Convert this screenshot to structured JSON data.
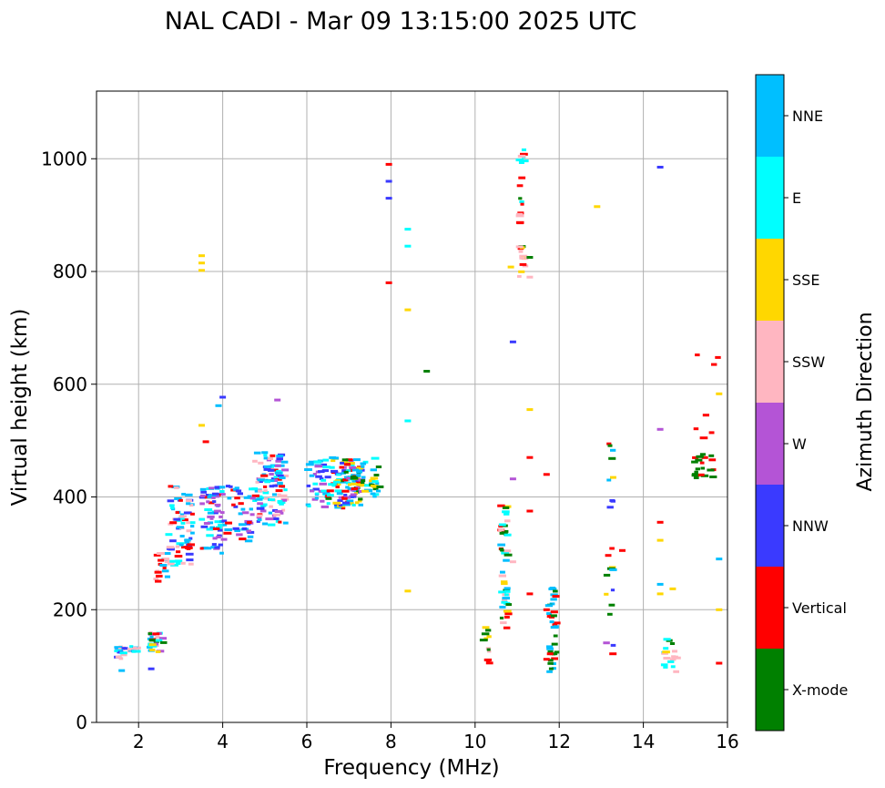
{
  "chart_data": {
    "type": "scatter",
    "title": "NAL CADI - Mar 09 13:15:00 2025 UTC",
    "xlabel": "Frequency (MHz)",
    "ylabel": "Virtual height (km)",
    "xlim": [
      1,
      16
    ],
    "ylim": [
      0,
      1120
    ],
    "xticks": [
      2,
      4,
      6,
      8,
      10,
      12,
      14,
      16
    ],
    "yticks": [
      0,
      200,
      400,
      600,
      800,
      1000
    ],
    "xtick_labels": [
      "2",
      "4",
      "6",
      "8",
      "10",
      "12",
      "14",
      "16"
    ],
    "ytick_labels": [
      "0",
      "200",
      "400",
      "600",
      "800",
      "1000"
    ],
    "grid": true,
    "colorbar": {
      "title": "Azimuth Direction",
      "categories": [
        "X-mode",
        "Vertical",
        "NNW",
        "W",
        "SSW",
        "SSE",
        "E",
        "NNE"
      ],
      "colors": [
        "#008000",
        "#ff0000",
        "#3a3aff",
        "#b454d6",
        "#ffb6c1",
        "#ffd700",
        "#00ffff",
        "#00bfff"
      ]
    },
    "clusters": [
      {
        "x": [
          1.5,
          1.7
        ],
        "y": [
          110,
          135
        ],
        "n": 20,
        "mix": [
          "E",
          "NNE",
          "SSW",
          "NNW"
        ]
      },
      {
        "x": [
          1.8,
          2.0
        ],
        "y": [
          125,
          135
        ],
        "n": 12,
        "mix": [
          "SSW",
          "NNE",
          "E"
        ]
      },
      {
        "x": [
          2.25,
          2.6
        ],
        "y": [
          125,
          160
        ],
        "n": 30,
        "mix": [
          "Vertical",
          "SSW",
          "E",
          "NNE",
          "SSE",
          "W",
          "X-mode"
        ]
      },
      {
        "x": [
          2.4,
          2.7
        ],
        "y": [
          250,
          300
        ],
        "n": 18,
        "mix": [
          "Vertical",
          "SSW",
          "NNE"
        ]
      },
      {
        "x": [
          2.7,
          3.3
        ],
        "y": [
          270,
          420
        ],
        "n": 70,
        "mix": [
          "Vertical",
          "NNE",
          "SSW",
          "NNW",
          "E"
        ]
      },
      {
        "x": [
          3.5,
          4.0
        ],
        "y": [
          300,
          420
        ],
        "n": 60,
        "mix": [
          "NNE",
          "Vertical",
          "E",
          "NNW",
          "W"
        ]
      },
      {
        "x": [
          4.0,
          4.7
        ],
        "y": [
          320,
          420
        ],
        "n": 40,
        "mix": [
          "NNW",
          "NNE",
          "W",
          "Vertical"
        ]
      },
      {
        "x": [
          4.7,
          5.5
        ],
        "y": [
          350,
          480
        ],
        "n": 110,
        "mix": [
          "W",
          "NNW",
          "NNE",
          "Vertical",
          "E",
          "SSW"
        ]
      },
      {
        "x": [
          6.0,
          6.5
        ],
        "y": [
          380,
          470
        ],
        "n": 40,
        "mix": [
          "NNW",
          "W",
          "NNE",
          "E"
        ]
      },
      {
        "x": [
          6.5,
          7.3
        ],
        "y": [
          380,
          470
        ],
        "n": 120,
        "mix": [
          "NNW",
          "NNE",
          "E",
          "W",
          "SSE",
          "X-mode",
          "Vertical"
        ]
      },
      {
        "x": [
          7.3,
          7.8
        ],
        "y": [
          400,
          470
        ],
        "n": 30,
        "mix": [
          "SSE",
          "E",
          "NNE",
          "X-mode"
        ]
      },
      {
        "x": [
          10.2,
          10.35
        ],
        "y": [
          90,
          170
        ],
        "n": 12,
        "mix": [
          "SSE",
          "Vertical",
          "X-mode",
          "SSW"
        ]
      },
      {
        "x": [
          10.6,
          10.8
        ],
        "y": [
          165,
          385
        ],
        "n": 45,
        "mix": [
          "SSE",
          "E",
          "X-mode",
          "Vertical",
          "SSW",
          "NNE"
        ]
      },
      {
        "x": [
          11.05,
          11.2
        ],
        "y": [
          790,
          1020
        ],
        "n": 30,
        "mix": [
          "SSW",
          "Vertical",
          "X-mode",
          "SSE",
          "E"
        ]
      },
      {
        "x": [
          11.75,
          11.95
        ],
        "y": [
          90,
          240
        ],
        "n": 35,
        "mix": [
          "Vertical",
          "X-mode",
          "NNE"
        ]
      },
      {
        "x": [
          13.1,
          13.3
        ],
        "y": [
          90,
          505
        ],
        "n": 22,
        "mix": [
          "X-mode",
          "Vertical",
          "NNW",
          "W",
          "NNE",
          "SSE"
        ]
      },
      {
        "x": [
          14.5,
          14.8
        ],
        "y": [
          88,
          150
        ],
        "n": 18,
        "mix": [
          "Vertical",
          "SSW",
          "SSE",
          "E",
          "X-mode"
        ]
      },
      {
        "x": [
          15.2,
          15.7
        ],
        "y": [
          430,
          485
        ],
        "n": 20,
        "mix": [
          "Vertical",
          "X-mode"
        ]
      },
      {
        "x": [
          15.2,
          15.7
        ],
        "y": [
          500,
          560
        ],
        "n": 4,
        "mix": [
          "Vertical"
        ]
      },
      {
        "x": [
          15.2,
          15.8
        ],
        "y": [
          635,
          675
        ],
        "n": 3,
        "mix": [
          "SSW",
          "Vertical"
        ]
      }
    ],
    "points": [
      [
        1.6,
        92,
        "NNE"
      ],
      [
        2.3,
        95,
        "NNW"
      ],
      [
        3.5,
        828,
        "SSE"
      ],
      [
        3.5,
        815,
        "SSE"
      ],
      [
        3.5,
        802,
        "SSE"
      ],
      [
        3.5,
        527,
        "SSE"
      ],
      [
        3.6,
        498,
        "Vertical"
      ],
      [
        3.9,
        562,
        "NNE"
      ],
      [
        4.0,
        577,
        "NNW"
      ],
      [
        5.3,
        572,
        "W"
      ],
      [
        7.95,
        990,
        "Vertical"
      ],
      [
        7.95,
        960,
        "NNW"
      ],
      [
        7.95,
        930,
        "NNW"
      ],
      [
        7.95,
        780,
        "Vertical"
      ],
      [
        8.4,
        875,
        "E"
      ],
      [
        8.4,
        845,
        "E"
      ],
      [
        8.4,
        732,
        "SSE"
      ],
      [
        8.4,
        535,
        "E"
      ],
      [
        8.4,
        233,
        "SSE"
      ],
      [
        8.85,
        623,
        "X-mode"
      ],
      [
        10.9,
        675,
        "NNW"
      ],
      [
        10.85,
        808,
        "SSE"
      ],
      [
        10.9,
        432,
        "W"
      ],
      [
        10.9,
        285,
        "SSW"
      ],
      [
        11.3,
        825,
        "X-mode"
      ],
      [
        11.3,
        790,
        "SSW"
      ],
      [
        11.3,
        555,
        "SSE"
      ],
      [
        11.3,
        470,
        "Vertical"
      ],
      [
        11.3,
        375,
        "Vertical"
      ],
      [
        11.3,
        228,
        "Vertical"
      ],
      [
        11.7,
        440,
        "Vertical"
      ],
      [
        11.7,
        200,
        "Vertical"
      ],
      [
        11.7,
        112,
        "Vertical"
      ],
      [
        12.9,
        915,
        "SSE"
      ],
      [
        13.5,
        305,
        "Vertical"
      ],
      [
        14.4,
        985,
        "NNW"
      ],
      [
        14.4,
        520,
        "W"
      ],
      [
        14.4,
        355,
        "Vertical"
      ],
      [
        14.4,
        323,
        "SSE"
      ],
      [
        14.4,
        245,
        "NNE"
      ],
      [
        14.4,
        228,
        "SSE"
      ],
      [
        14.7,
        237,
        "SSE"
      ],
      [
        15.8,
        583,
        "SSE"
      ],
      [
        15.8,
        290,
        "NNE"
      ],
      [
        15.8,
        200,
        "SSE"
      ],
      [
        15.8,
        105,
        "Vertical"
      ]
    ],
    "seed": 17
  }
}
